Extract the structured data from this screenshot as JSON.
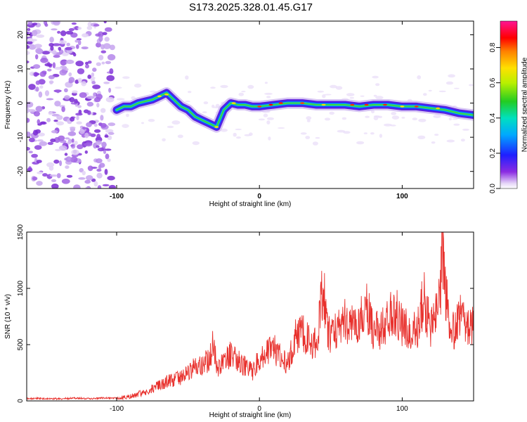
{
  "title": "S173.2025.328.01.45.G17",
  "chart_data": [
    {
      "type": "heatmap",
      "xlabel": "Height of straight line (km)",
      "ylabel": "Frequency (Hz)",
      "xlim": [
        -163,
        150
      ],
      "ylim": [
        -25,
        24
      ],
      "xticks": [
        -100,
        0,
        100
      ],
      "yticks": [
        -20,
        -10,
        0,
        10,
        20
      ],
      "colorbar_label": "Normalized spectral amplitude",
      "colorbar_range": [
        0,
        0.95
      ],
      "colorbar_ticks": [
        "0.0",
        "0.2",
        "0.4",
        "0.6",
        "0.8"
      ],
      "ridge": {
        "x": [
          -100,
          -95,
          -90,
          -85,
          -80,
          -75,
          -70,
          -65,
          -60,
          -55,
          -50,
          -45,
          -40,
          -35,
          -30,
          -25,
          -20,
          -15,
          -10,
          -5,
          0,
          10,
          20,
          30,
          40,
          50,
          60,
          70,
          80,
          90,
          100,
          110,
          120,
          130,
          140,
          150
        ],
        "y": [
          -2,
          -1,
          -1,
          0,
          0.5,
          1,
          2,
          3,
          1,
          -1,
          -2,
          -4,
          -5,
          -6,
          -7,
          -2,
          0,
          -0.5,
          -0.5,
          -1,
          -1,
          -0.5,
          0,
          0,
          -0.5,
          -0.5,
          -0.5,
          -1,
          -0.5,
          -0.5,
          -1,
          -1,
          -1.5,
          -2,
          -3,
          -3.5
        ]
      }
    },
    {
      "type": "line",
      "xlabel": "Height of straight line (km)",
      "ylabel": "SNR (10 * v/v)",
      "xlim": [
        -163,
        150
      ],
      "ylim": [
        0,
        1500
      ],
      "xticks": [
        -100,
        0,
        100
      ],
      "yticks": [
        0,
        500,
        1000,
        1500
      ],
      "series": [
        {
          "name": "SNR",
          "color": "#e8302c",
          "x": [
            -163,
            -150,
            -140,
            -130,
            -120,
            -110,
            -100,
            -95,
            -90,
            -85,
            -80,
            -75,
            -70,
            -65,
            -60,
            -55,
            -50,
            -45,
            -40,
            -35,
            -32,
            -30,
            -25,
            -20,
            -15,
            -10,
            -5,
            0,
            5,
            10,
            15,
            20,
            25,
            30,
            35,
            40,
            42,
            44,
            45,
            46,
            48,
            50,
            55,
            60,
            62,
            65,
            70,
            72,
            75,
            80,
            85,
            90,
            95,
            100,
            105,
            110,
            113,
            115,
            120,
            125,
            127,
            128,
            130,
            135,
            140,
            145,
            150
          ],
          "y": [
            20,
            22,
            18,
            25,
            20,
            25,
            25,
            30,
            40,
            60,
            80,
            110,
            140,
            170,
            190,
            210,
            250,
            300,
            320,
            370,
            560,
            280,
            330,
            420,
            370,
            310,
            260,
            380,
            420,
            460,
            390,
            330,
            560,
            600,
            520,
            520,
            700,
            960,
            1080,
            850,
            650,
            580,
            640,
            760,
            620,
            700,
            680,
            780,
            830,
            600,
            650,
            720,
            810,
            660,
            640,
            600,
            800,
            920,
            650,
            780,
            980,
            1480,
            950,
            600,
            780,
            650,
            700
          ]
        }
      ]
    }
  ]
}
